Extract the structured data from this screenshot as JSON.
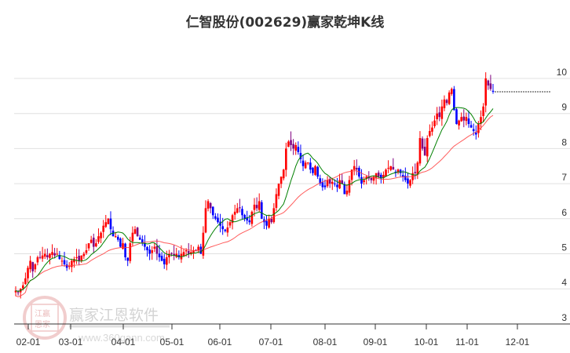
{
  "title": "仁智股份(002629)赢家乾坤K线",
  "watermark": {
    "logo_top": "江赢",
    "logo_bottom": "恩家",
    "brand": "赢家江恩软件",
    "url": "www.360gann.com"
  },
  "colors": {
    "up": "#ff0000",
    "down": "#0000ff",
    "neutral": "#800080",
    "ma_short": "#008000",
    "ma_long": "#ff4040",
    "grid": "#e0e0e0",
    "axis": "#333333"
  },
  "chart_data": {
    "type": "candlestick",
    "title": "仁智股份(002629)赢家乾坤K线",
    "xlabel": "",
    "ylabel": "",
    "ylim": [
      3,
      10.3
    ],
    "y_ticks": [
      3,
      4,
      5,
      6,
      7,
      8,
      9,
      10
    ],
    "x_ticks": [
      "02-01",
      "03-01",
      "04-01",
      "05-01",
      "06-01",
      "07-01",
      "08-01",
      "09-01",
      "10-01",
      "11-01",
      "12-01"
    ],
    "x_tick_pos": [
      36,
      90,
      157,
      219,
      280,
      345,
      414,
      478,
      543,
      595,
      659
    ],
    "last_price": 9.62,
    "grid": true,
    "legend": [],
    "closes": [
      3.95,
      3.9,
      4.0,
      4.1,
      4.3,
      4.6,
      4.8,
      4.5,
      4.7,
      4.9,
      4.9,
      4.95,
      5.0,
      4.9,
      5.0,
      5.05,
      4.95,
      5.0,
      4.85,
      4.8,
      4.7,
      4.6,
      4.65,
      4.8,
      4.85,
      4.9,
      4.8,
      4.95,
      5.0,
      5.1,
      5.3,
      5.4,
      5.2,
      5.3,
      5.5,
      5.6,
      5.8,
      5.9,
      6.0,
      5.7,
      5.5,
      5.5,
      5.4,
      5.2,
      5.3,
      4.9,
      4.8,
      5.3,
      5.6,
      5.7,
      5.5,
      5.4,
      5.3,
      5.2,
      5.1,
      5.0,
      5.1,
      5.2,
      5.0,
      4.9,
      4.8,
      4.7,
      4.9,
      5.0,
      5.0,
      4.95,
      5.0,
      4.9,
      5.0,
      5.05,
      5.1,
      5.0,
      5.05,
      5.1,
      5.1,
      5.2,
      5.0,
      5.6,
      6.3,
      6.5,
      6.3,
      6.1,
      6.0,
      5.9,
      5.8,
      5.7,
      5.65,
      5.75,
      5.9,
      6.1,
      6.2,
      6.3,
      6.3,
      6.1,
      6.0,
      5.95,
      5.9,
      6.2,
      6.4,
      6.3,
      6.5,
      6.0,
      5.9,
      5.8,
      6.0,
      5.9,
      6.3,
      6.7,
      7.0,
      7.2,
      7.4,
      8.0,
      8.2,
      8.1,
      8.0,
      8.1,
      7.9,
      7.7,
      7.5,
      7.6,
      7.6,
      7.4,
      7.3,
      7.5,
      7.2,
      7.0,
      6.9,
      6.9,
      7.1,
      7.0,
      7.05,
      7.0,
      6.9,
      7.1,
      7.0,
      6.7,
      6.8,
      7.1,
      7.4,
      7.5,
      7.4,
      7.2,
      7.0,
      7.1,
      7.2,
      7.15,
      7.1,
      7.2,
      7.3,
      7.2,
      7.15,
      7.25,
      7.4,
      7.45,
      7.5,
      7.4,
      7.3,
      7.4,
      7.3,
      7.2,
      7.1,
      7.0,
      7.1,
      7.3,
      7.3,
      7.6,
      8.3,
      8.0,
      7.8,
      8.3,
      8.5,
      8.6,
      8.8,
      9.0,
      8.9,
      9.2,
      9.4,
      9.3,
      9.6,
      9.7,
      9.1,
      8.7,
      8.8,
      8.9,
      8.8,
      8.9,
      8.7,
      8.6,
      8.5,
      8.4,
      8.7,
      8.9,
      9.2,
      10.0,
      9.8,
      9.7,
      9.62
    ]
  }
}
